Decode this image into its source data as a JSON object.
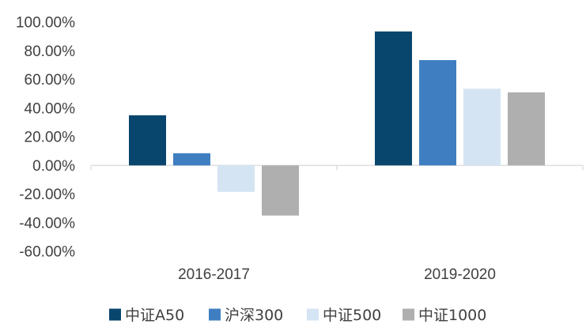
{
  "chart_data": {
    "type": "bar",
    "title": "",
    "xlabel": "",
    "ylabel": "",
    "categories": [
      "2016-2017",
      "2019-2020"
    ],
    "series": [
      {
        "name": "中证A50",
        "values": [
          35.0,
          93.5
        ],
        "color": "#08466e"
      },
      {
        "name": "沪深300",
        "values": [
          8.5,
          73.5
        ],
        "color": "#3f7fc1"
      },
      {
        "name": "中证500",
        "values": [
          -18.5,
          53.5
        ],
        "color": "#d4e4f3"
      },
      {
        "name": "中证1000",
        "values": [
          -35.0,
          51.0
        ],
        "color": "#afafaf"
      }
    ],
    "ylim": [
      -60,
      100
    ],
    "yticks": [
      {
        "value": 100,
        "label": "100.00%"
      },
      {
        "value": 80,
        "label": "80.00%"
      },
      {
        "value": 60,
        "label": "60.00%"
      },
      {
        "value": 40,
        "label": "40.00%"
      },
      {
        "value": 20,
        "label": "20.00%"
      },
      {
        "value": 0,
        "label": "0.00%"
      },
      {
        "value": -20,
        "label": "-20.00%"
      },
      {
        "value": -40,
        "label": "-40.00%"
      },
      {
        "value": -60,
        "label": "-60.00%"
      }
    ],
    "grid": false,
    "legend_position": "bottom"
  }
}
